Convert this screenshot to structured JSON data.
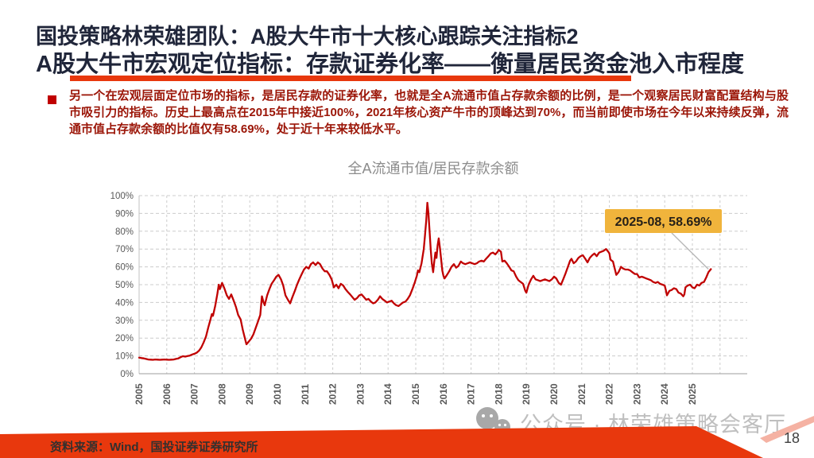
{
  "header": {
    "title_line1": "国投策略林荣雄团队：A股大牛市十大核心跟踪关注指标2",
    "title_line2": "A股大牛市宏观定位指标：存款证券化率——衡量居民资金池入市程度"
  },
  "summary": {
    "text": "另一个在宏观层面定位市场的指标，是居民存款的证券化率，也就是全A流通市值占存款余额的比例，是一个观察居民财富配置结构与股市吸引力的指标。历史上最高点在2015年中接近100%，2021年核心资产牛市的顶峰达到70%，而当前即使市场在今年以来持续反弹，流通市值占存款余额的比值仅有58.69%，处于近十年来较低水平。"
  },
  "watermark": {
    "text": "公众号 · 林荣雄策略会客厅"
  },
  "footer": {
    "source": "资料来源：Wind，国投证券证券研究所",
    "page_number": "18"
  },
  "colors": {
    "accent_red": "#e8380d",
    "title_navy": "#20263a",
    "body_text_red": "#9b1507",
    "bullet_red": "#c00000",
    "line_red": "#c00000",
    "annotation_gold": "#f0b43c",
    "annotation_text": "#262018",
    "grid_gray": "#cccccc",
    "axis_text_gray": "#595959",
    "chart_title_gray": "#8c8c8c",
    "watermark_gray": "#b5b5b5",
    "pink_stripe": "#f5b2a3"
  },
  "chart_data": {
    "type": "line",
    "title": "全A流通市值/居民存款余额",
    "xlabel": "",
    "ylabel": "",
    "x_ticks": [
      "2005",
      "2006",
      "2007",
      "2008",
      "2009",
      "2010",
      "2011",
      "2012",
      "2013",
      "2014",
      "2015",
      "2016",
      "2017",
      "2018",
      "2019",
      "2020",
      "2021",
      "2022",
      "2023",
      "2024",
      "2025"
    ],
    "y_ticks": [
      "0%",
      "10%",
      "20%",
      "30%",
      "40%",
      "50%",
      "60%",
      "70%",
      "80%",
      "90%",
      "100%"
    ],
    "ylim": [
      0,
      100
    ],
    "xlim": [
      2005,
      2027
    ],
    "grid": "dashed-both-axes",
    "legend": "none",
    "annotation": {
      "text": "2025-08, 58.69%",
      "x": 2025.58,
      "y": 58.69
    },
    "series": [
      {
        "name": "全A流通市值/居民存款余额",
        "color": "#c00000",
        "points": [
          [
            2005.0,
            9.0
          ],
          [
            2005.08,
            8.8
          ],
          [
            2005.17,
            8.6
          ],
          [
            2005.25,
            8.3
          ],
          [
            2005.33,
            8.0
          ],
          [
            2005.42,
            7.9
          ],
          [
            2005.5,
            7.8
          ],
          [
            2005.58,
            8.0
          ],
          [
            2005.67,
            7.9
          ],
          [
            2005.75,
            7.8
          ],
          [
            2005.83,
            7.9
          ],
          [
            2005.92,
            8.0
          ],
          [
            2006.0,
            7.9
          ],
          [
            2006.08,
            7.8
          ],
          [
            2006.17,
            7.9
          ],
          [
            2006.25,
            8.0
          ],
          [
            2006.33,
            8.3
          ],
          [
            2006.42,
            8.6
          ],
          [
            2006.5,
            9.3
          ],
          [
            2006.58,
            9.8
          ],
          [
            2006.67,
            9.6
          ],
          [
            2006.75,
            9.9
          ],
          [
            2006.83,
            10.2
          ],
          [
            2006.92,
            10.8
          ],
          [
            2007.0,
            11.2
          ],
          [
            2007.08,
            11.8
          ],
          [
            2007.17,
            13.0
          ],
          [
            2007.25,
            14.8
          ],
          [
            2007.33,
            17.5
          ],
          [
            2007.42,
            21.0
          ],
          [
            2007.5,
            26.0
          ],
          [
            2007.58,
            30.5
          ],
          [
            2007.63,
            33.5
          ],
          [
            2007.67,
            32.5
          ],
          [
            2007.75,
            38.0
          ],
          [
            2007.83,
            45.0
          ],
          [
            2007.88,
            50.0
          ],
          [
            2007.92,
            47.5
          ],
          [
            2008.0,
            51.0
          ],
          [
            2008.08,
            48.0
          ],
          [
            2008.17,
            44.0
          ],
          [
            2008.25,
            42.0
          ],
          [
            2008.33,
            44.5
          ],
          [
            2008.42,
            41.0
          ],
          [
            2008.5,
            37.5
          ],
          [
            2008.58,
            33.0
          ],
          [
            2008.67,
            30.5
          ],
          [
            2008.75,
            24.5
          ],
          [
            2008.83,
            19.5
          ],
          [
            2008.88,
            16.5
          ],
          [
            2008.96,
            18.0
          ],
          [
            2009.04,
            19.5
          ],
          [
            2009.13,
            22.0
          ],
          [
            2009.21,
            25.5
          ],
          [
            2009.29,
            29.0
          ],
          [
            2009.38,
            33.0
          ],
          [
            2009.44,
            43.5
          ],
          [
            2009.5,
            40.0
          ],
          [
            2009.54,
            38.5
          ],
          [
            2009.63,
            44.0
          ],
          [
            2009.71,
            47.5
          ],
          [
            2009.79,
            50.5
          ],
          [
            2009.88,
            52.5
          ],
          [
            2009.96,
            54.5
          ],
          [
            2010.04,
            55.5
          ],
          [
            2010.13,
            53.0
          ],
          [
            2010.21,
            49.5
          ],
          [
            2010.29,
            44.0
          ],
          [
            2010.38,
            41.5
          ],
          [
            2010.46,
            39.5
          ],
          [
            2010.54,
            43.0
          ],
          [
            2010.63,
            46.5
          ],
          [
            2010.71,
            50.0
          ],
          [
            2010.79,
            53.0
          ],
          [
            2010.88,
            56.0
          ],
          [
            2010.96,
            58.5
          ],
          [
            2011.04,
            60.0
          ],
          [
            2011.13,
            59.0
          ],
          [
            2011.21,
            61.5
          ],
          [
            2011.29,
            62.5
          ],
          [
            2011.38,
            61.0
          ],
          [
            2011.46,
            62.5
          ],
          [
            2011.54,
            61.5
          ],
          [
            2011.63,
            59.0
          ],
          [
            2011.71,
            57.5
          ],
          [
            2011.79,
            57.5
          ],
          [
            2011.88,
            55.5
          ],
          [
            2011.96,
            53.0
          ],
          [
            2012.04,
            48.5
          ],
          [
            2012.13,
            50.0
          ],
          [
            2012.21,
            48.0
          ],
          [
            2012.29,
            50.5
          ],
          [
            2012.38,
            49.5
          ],
          [
            2012.46,
            47.5
          ],
          [
            2012.54,
            46.0
          ],
          [
            2012.63,
            44.5
          ],
          [
            2012.71,
            43.0
          ],
          [
            2012.79,
            41.5
          ],
          [
            2012.88,
            42.5
          ],
          [
            2012.96,
            44.0
          ],
          [
            2013.04,
            44.5
          ],
          [
            2013.13,
            43.0
          ],
          [
            2013.21,
            41.5
          ],
          [
            2013.29,
            42.0
          ],
          [
            2013.38,
            40.5
          ],
          [
            2013.46,
            39.5
          ],
          [
            2013.54,
            40.0
          ],
          [
            2013.63,
            41.5
          ],
          [
            2013.71,
            43.5
          ],
          [
            2013.79,
            42.0
          ],
          [
            2013.88,
            41.0
          ],
          [
            2013.96,
            40.0
          ],
          [
            2014.04,
            40.5
          ],
          [
            2014.13,
            41.0
          ],
          [
            2014.21,
            39.5
          ],
          [
            2014.29,
            38.5
          ],
          [
            2014.38,
            38.0
          ],
          [
            2014.46,
            39.0
          ],
          [
            2014.54,
            40.0
          ],
          [
            2014.63,
            40.5
          ],
          [
            2014.71,
            42.0
          ],
          [
            2014.79,
            44.0
          ],
          [
            2014.88,
            47.5
          ],
          [
            2014.96,
            51.0
          ],
          [
            2015.04,
            55.0
          ],
          [
            2015.08,
            58.0
          ],
          [
            2015.13,
            57.0
          ],
          [
            2015.21,
            62.0
          ],
          [
            2015.29,
            70.0
          ],
          [
            2015.33,
            77.0
          ],
          [
            2015.38,
            86.0
          ],
          [
            2015.42,
            96.0
          ],
          [
            2015.46,
            90.0
          ],
          [
            2015.5,
            80.0
          ],
          [
            2015.54,
            70.0
          ],
          [
            2015.58,
            62.0
          ],
          [
            2015.63,
            57.0
          ],
          [
            2015.67,
            63.0
          ],
          [
            2015.71,
            68.0
          ],
          [
            2015.75,
            65.0
          ],
          [
            2015.79,
            72.0
          ],
          [
            2015.83,
            76.0
          ],
          [
            2015.88,
            70.0
          ],
          [
            2015.92,
            64.0
          ],
          [
            2015.96,
            58.0
          ],
          [
            2016.0,
            55.0
          ],
          [
            2016.04,
            53.5
          ],
          [
            2016.13,
            55.5
          ],
          [
            2016.21,
            57.5
          ],
          [
            2016.29,
            60.0
          ],
          [
            2016.38,
            61.5
          ],
          [
            2016.46,
            59.5
          ],
          [
            2016.54,
            60.5
          ],
          [
            2016.63,
            63.0
          ],
          [
            2016.71,
            62.0
          ],
          [
            2016.79,
            61.5
          ],
          [
            2016.88,
            62.0
          ],
          [
            2016.96,
            62.5
          ],
          [
            2017.04,
            62.0
          ],
          [
            2017.13,
            61.5
          ],
          [
            2017.21,
            62.0
          ],
          [
            2017.29,
            63.0
          ],
          [
            2017.38,
            63.5
          ],
          [
            2017.46,
            63.0
          ],
          [
            2017.54,
            64.5
          ],
          [
            2017.63,
            66.0
          ],
          [
            2017.71,
            67.5
          ],
          [
            2017.79,
            68.0
          ],
          [
            2017.88,
            67.0
          ],
          [
            2017.96,
            68.5
          ],
          [
            2018.0,
            69.5
          ],
          [
            2018.08,
            68.5
          ],
          [
            2018.13,
            63.0
          ],
          [
            2018.21,
            63.5
          ],
          [
            2018.29,
            62.0
          ],
          [
            2018.38,
            60.0
          ],
          [
            2018.46,
            58.0
          ],
          [
            2018.54,
            57.5
          ],
          [
            2018.63,
            54.5
          ],
          [
            2018.71,
            52.5
          ],
          [
            2018.79,
            51.5
          ],
          [
            2018.88,
            50.5
          ],
          [
            2018.96,
            46.5
          ],
          [
            2019.0,
            45.5
          ],
          [
            2019.08,
            50.0
          ],
          [
            2019.17,
            53.0
          ],
          [
            2019.25,
            55.0
          ],
          [
            2019.33,
            53.0
          ],
          [
            2019.42,
            52.5
          ],
          [
            2019.5,
            52.0
          ],
          [
            2019.58,
            52.5
          ],
          [
            2019.67,
            53.0
          ],
          [
            2019.75,
            52.5
          ],
          [
            2019.83,
            52.0
          ],
          [
            2019.92,
            53.0
          ],
          [
            2020.0,
            54.5
          ],
          [
            2020.08,
            53.5
          ],
          [
            2020.17,
            51.0
          ],
          [
            2020.25,
            50.0
          ],
          [
            2020.33,
            53.0
          ],
          [
            2020.42,
            56.5
          ],
          [
            2020.5,
            60.0
          ],
          [
            2020.58,
            63.5
          ],
          [
            2020.63,
            64.5
          ],
          [
            2020.71,
            62.0
          ],
          [
            2020.79,
            63.0
          ],
          [
            2020.88,
            65.0
          ],
          [
            2020.96,
            66.0
          ],
          [
            2021.04,
            66.5
          ],
          [
            2021.13,
            64.5
          ],
          [
            2021.21,
            62.5
          ],
          [
            2021.29,
            65.0
          ],
          [
            2021.38,
            66.5
          ],
          [
            2021.46,
            67.5
          ],
          [
            2021.54,
            66.0
          ],
          [
            2021.63,
            68.0
          ],
          [
            2021.71,
            68.5
          ],
          [
            2021.79,
            69.0
          ],
          [
            2021.88,
            70.0
          ],
          [
            2021.96,
            68.5
          ],
          [
            2022.0,
            67.5
          ],
          [
            2022.04,
            64.0
          ],
          [
            2022.13,
            63.0
          ],
          [
            2022.21,
            58.0
          ],
          [
            2022.25,
            55.5
          ],
          [
            2022.33,
            57.0
          ],
          [
            2022.42,
            60.0
          ],
          [
            2022.5,
            59.0
          ],
          [
            2022.58,
            58.5
          ],
          [
            2022.67,
            58.5
          ],
          [
            2022.75,
            58.0
          ],
          [
            2022.83,
            57.0
          ],
          [
            2022.92,
            56.0
          ],
          [
            2023.0,
            56.0
          ],
          [
            2023.08,
            54.0
          ],
          [
            2023.17,
            54.5
          ],
          [
            2023.25,
            54.0
          ],
          [
            2023.33,
            53.5
          ],
          [
            2023.42,
            53.0
          ],
          [
            2023.5,
            52.5
          ],
          [
            2023.58,
            51.5
          ],
          [
            2023.67,
            51.0
          ],
          [
            2023.75,
            51.5
          ],
          [
            2023.83,
            50.5
          ],
          [
            2023.92,
            50.0
          ],
          [
            2024.0,
            49.5
          ],
          [
            2024.04,
            47.0
          ],
          [
            2024.08,
            44.0
          ],
          [
            2024.17,
            46.5
          ],
          [
            2024.25,
            47.0
          ],
          [
            2024.33,
            48.0
          ],
          [
            2024.42,
            47.5
          ],
          [
            2024.5,
            45.5
          ],
          [
            2024.58,
            45.0
          ],
          [
            2024.67,
            43.5
          ],
          [
            2024.71,
            44.5
          ],
          [
            2024.75,
            48.5
          ],
          [
            2024.83,
            49.5
          ],
          [
            2024.92,
            50.0
          ],
          [
            2025.0,
            48.5
          ],
          [
            2025.08,
            48.0
          ],
          [
            2025.17,
            50.0
          ],
          [
            2025.25,
            49.5
          ],
          [
            2025.33,
            51.0
          ],
          [
            2025.42,
            51.5
          ],
          [
            2025.5,
            54.0
          ],
          [
            2025.58,
            57.0
          ],
          [
            2025.67,
            58.69
          ]
        ]
      }
    ]
  }
}
